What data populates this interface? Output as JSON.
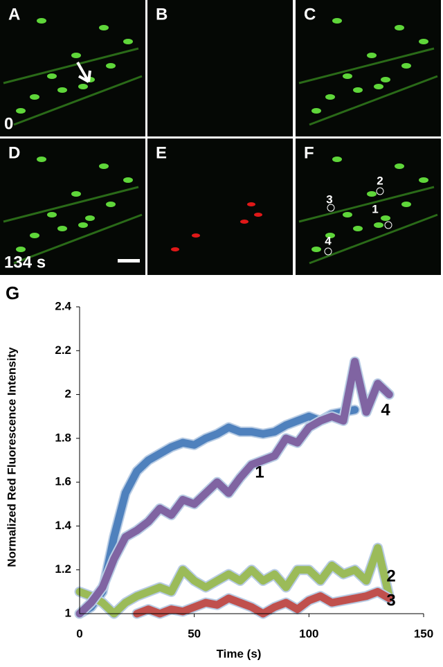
{
  "panels": {
    "labels": [
      "A",
      "B",
      "C",
      "D",
      "E",
      "F"
    ],
    "time_start": "0",
    "time_end": "134 s",
    "rois": [
      "1",
      "2",
      "3",
      "4"
    ]
  },
  "figure_label": "G",
  "chart_data": {
    "type": "line",
    "ylabel": "Normalized Red Fluorescence Intensity",
    "xlabel": "Time (s)",
    "x": [
      0,
      5,
      10,
      15,
      20,
      25,
      30,
      35,
      40,
      45,
      50,
      55,
      60,
      65,
      70,
      75,
      80,
      85,
      90,
      95,
      100,
      105,
      110,
      115,
      120,
      125,
      130,
      135
    ],
    "series": [
      {
        "name": "1",
        "color": "#4f81bd",
        "values": [
          1.0,
          1.03,
          1.1,
          1.35,
          1.55,
          1.65,
          1.7,
          1.73,
          1.76,
          1.78,
          1.77,
          1.8,
          1.82,
          1.85,
          1.83,
          1.83,
          1.82,
          1.83,
          1.86,
          1.88,
          1.9,
          1.88,
          1.91,
          1.92,
          1.93,
          null,
          null,
          null
        ]
      },
      {
        "name": "2",
        "color": "#9bbb59",
        "values": [
          1.1,
          1.08,
          1.05,
          1.0,
          1.05,
          1.08,
          1.1,
          1.12,
          1.1,
          1.2,
          1.15,
          1.12,
          1.15,
          1.18,
          1.15,
          1.2,
          1.15,
          1.18,
          1.12,
          1.2,
          1.2,
          1.15,
          1.22,
          1.18,
          1.2,
          1.15,
          1.3,
          1.08
        ]
      },
      {
        "name": "3",
        "color": "#c0504d",
        "values": [
          null,
          null,
          null,
          null,
          null,
          1.0,
          1.02,
          1.0,
          1.02,
          1.01,
          1.03,
          1.05,
          1.04,
          1.07,
          1.05,
          1.03,
          1.0,
          1.03,
          1.05,
          1.02,
          1.06,
          1.08,
          1.05,
          1.06,
          1.07,
          1.08,
          1.1,
          1.07
        ]
      },
      {
        "name": "4",
        "color": "#8064a2",
        "values": [
          1.0,
          1.05,
          1.12,
          1.25,
          1.35,
          1.38,
          1.42,
          1.48,
          1.45,
          1.52,
          1.5,
          1.55,
          1.6,
          1.55,
          1.62,
          1.68,
          1.7,
          1.72,
          1.8,
          1.78,
          1.85,
          1.88,
          1.9,
          1.88,
          2.15,
          1.92,
          2.05,
          2.0
        ]
      }
    ],
    "xlim": [
      0,
      150
    ],
    "xticks": [
      0,
      50,
      100,
      150
    ],
    "ylim": [
      1,
      2.4
    ],
    "yticks": [
      1,
      1.2,
      1.4,
      1.6,
      1.8,
      2,
      2.2,
      2.4
    ],
    "grid": false
  }
}
